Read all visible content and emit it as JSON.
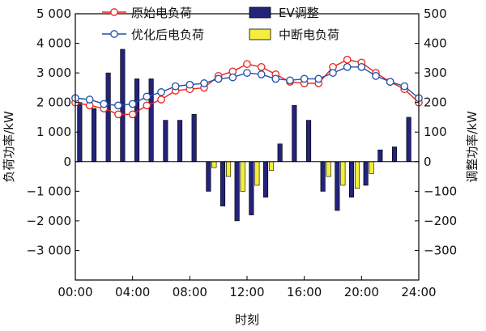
{
  "chart_data": {
    "type": "bar+line",
    "x_ticks": [
      "00:00",
      "04:00",
      "08:00",
      "12:00",
      "16:00",
      "20:00",
      "24:00"
    ],
    "x_range": [
      0,
      24
    ],
    "xlabel": "时刻",
    "ylabel_left": "负荷功率/kW",
    "ylabel_right": "调整功率/kW",
    "ylim_left": [
      -4000,
      5000
    ],
    "ylim_right": [
      -400,
      500
    ],
    "y_ticks_left": [
      -3000,
      -2000,
      -1000,
      0,
      1000,
      2000,
      3000,
      4000,
      5000
    ],
    "y_tick_labels_left": [
      "−3 000",
      "−2 000",
      "−1 000",
      "0",
      "1 000",
      "2 000",
      "3 000",
      "4 000",
      "5 000"
    ],
    "y_ticks_right": [
      -300,
      -200,
      -100,
      0,
      100,
      200,
      300,
      400,
      500
    ],
    "y_tick_labels_right": [
      "−300",
      "−200",
      "−100",
      "0",
      "100",
      "200",
      "300",
      "400",
      "500"
    ],
    "legend": [
      {
        "name": "原始电负荷",
        "kind": "line",
        "color": "#e8231f"
      },
      {
        "name": "EV调整",
        "kind": "bar",
        "color": "#23237a"
      },
      {
        "name": "优化后电负荷",
        "kind": "line",
        "color": "#1f4fa8"
      },
      {
        "name": "中断电负荷",
        "kind": "bar",
        "color": "#f4ee3a"
      }
    ],
    "series": [
      {
        "name": "原始电负荷",
        "axis": "left",
        "type": "line",
        "color": "#e8231f",
        "x": [
          0,
          1,
          2,
          3,
          4,
          5,
          6,
          7,
          8,
          9,
          10,
          11,
          12,
          13,
          14,
          15,
          16,
          17,
          18,
          19,
          20,
          21,
          22,
          23,
          24
        ],
        "values": [
          2000,
          1900,
          1800,
          1600,
          1600,
          1900,
          2100,
          2400,
          2450,
          2500,
          2900,
          3050,
          3300,
          3200,
          2950,
          2700,
          2650,
          2650,
          3200,
          3450,
          3350,
          3000,
          2700,
          2450,
          2000
        ]
      },
      {
        "name": "优化后电负荷",
        "axis": "left",
        "type": "line",
        "color": "#1f4fa8",
        "x": [
          0,
          1,
          2,
          3,
          4,
          5,
          6,
          7,
          8,
          9,
          10,
          11,
          12,
          13,
          14,
          15,
          16,
          17,
          18,
          19,
          20,
          21,
          22,
          23,
          24
        ],
        "values": [
          2150,
          2100,
          1950,
          1900,
          1950,
          2200,
          2350,
          2550,
          2600,
          2650,
          2800,
          2850,
          3000,
          2950,
          2800,
          2750,
          2800,
          2800,
          3000,
          3200,
          3200,
          2900,
          2700,
          2550,
          2150
        ]
      },
      {
        "name": "EV调整",
        "axis": "right",
        "type": "bar",
        "color": "#23237a",
        "x": [
          0.5,
          1.5,
          2.5,
          3.5,
          4.5,
          5.5,
          6.5,
          7.5,
          8.5,
          9.5,
          10.5,
          11.5,
          12.5,
          13.5,
          14.5,
          15.5,
          16.5,
          17.5,
          18.5,
          19.5,
          20.5,
          21.5,
          22.5,
          23.5
        ],
        "values": [
          200,
          180,
          300,
          380,
          280,
          280,
          140,
          140,
          160,
          -100,
          -150,
          -200,
          -180,
          -120,
          60,
          190,
          140,
          -100,
          -165,
          -120,
          -80,
          40,
          50,
          150
        ]
      },
      {
        "name": "中断电负荷",
        "axis": "right",
        "type": "bar",
        "color": "#f4ee3a",
        "x": [
          0.5,
          1.5,
          2.5,
          3.5,
          4.5,
          5.5,
          6.5,
          7.5,
          8.5,
          9.5,
          10.5,
          11.5,
          12.5,
          13.5,
          14.5,
          15.5,
          16.5,
          17.5,
          18.5,
          19.5,
          20.5,
          21.5,
          22.5,
          23.5
        ],
        "values": [
          0,
          0,
          0,
          0,
          0,
          0,
          0,
          0,
          0,
          -20,
          -50,
          -100,
          -80,
          -30,
          0,
          0,
          0,
          -50,
          -80,
          -90,
          -40,
          0,
          0,
          0
        ]
      }
    ]
  }
}
